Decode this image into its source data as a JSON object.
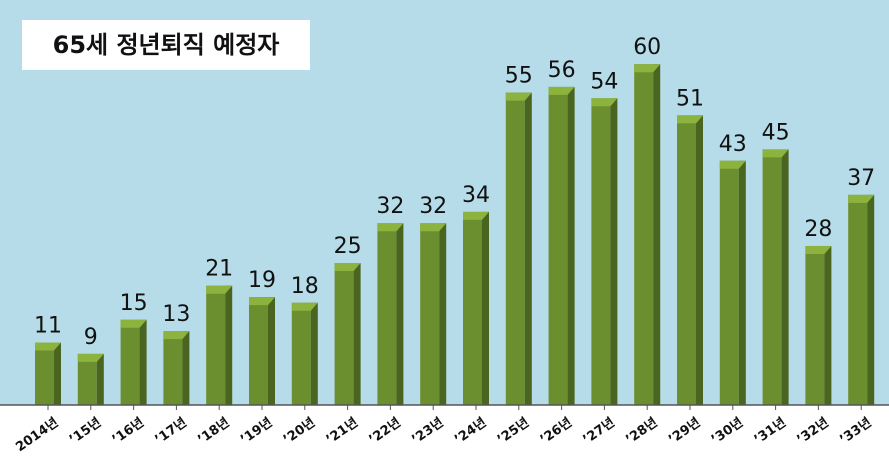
{
  "chart_data": {
    "type": "bar",
    "title": "65세 정년퇴직 예정자",
    "categories": [
      "2014년",
      "’15년",
      "’16년",
      "’17년",
      "’18년",
      "’19년",
      "’20년",
      "’21년",
      "’22년",
      "’23년",
      "’24년",
      "’25년",
      "’26년",
      "’27년",
      "’28년",
      "’29년",
      "’30년",
      "’31년",
      "’32년",
      "’33년"
    ],
    "values": [
      11,
      9,
      15,
      13,
      21,
      19,
      18,
      25,
      32,
      32,
      34,
      55,
      56,
      54,
      60,
      51,
      43,
      45,
      28,
      37
    ],
    "ylim": [
      0,
      60
    ],
    "grid": false,
    "legend": "none"
  },
  "colors": {
    "plot_background": "#b5dce8",
    "bar_front": "#6b8e2e",
    "bar_side": "#4a6520",
    "bar_top": "#8db33f",
    "axis": "#555555"
  }
}
